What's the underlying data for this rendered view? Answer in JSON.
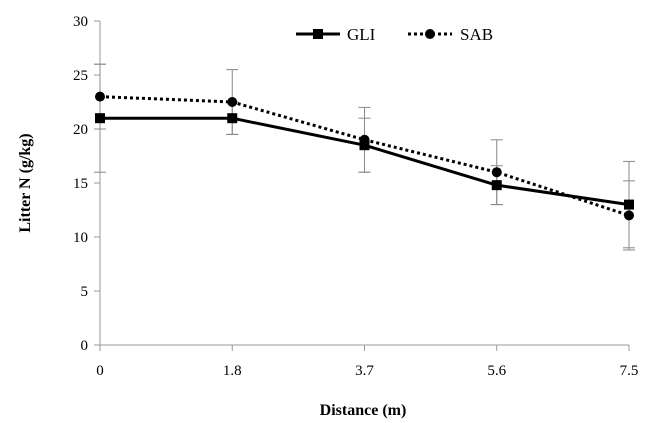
{
  "chart_data": {
    "type": "line",
    "title": "",
    "xlabel": "Distance (m)",
    "ylabel": "Litter N (g/kg)",
    "x": [
      "0",
      "1.8",
      "3.7",
      "5.6",
      "7.5"
    ],
    "ylim": [
      0,
      30
    ],
    "yticks": [
      0,
      5,
      10,
      15,
      20,
      25,
      30
    ],
    "grid": false,
    "legend_position": "top-right",
    "series": [
      {
        "name": "GLI",
        "style": "solid",
        "marker": "square",
        "color": "#000000",
        "values": [
          21,
          21,
          18.5,
          14.8,
          13
        ],
        "error": [
          5,
          1.5,
          2.5,
          1.8,
          4
        ]
      },
      {
        "name": "SAB",
        "style": "dotted",
        "marker": "circle",
        "color": "#000000",
        "values": [
          23,
          22.5,
          19,
          16,
          12
        ],
        "error": [
          3,
          3,
          3,
          3,
          3.2
        ]
      }
    ]
  }
}
